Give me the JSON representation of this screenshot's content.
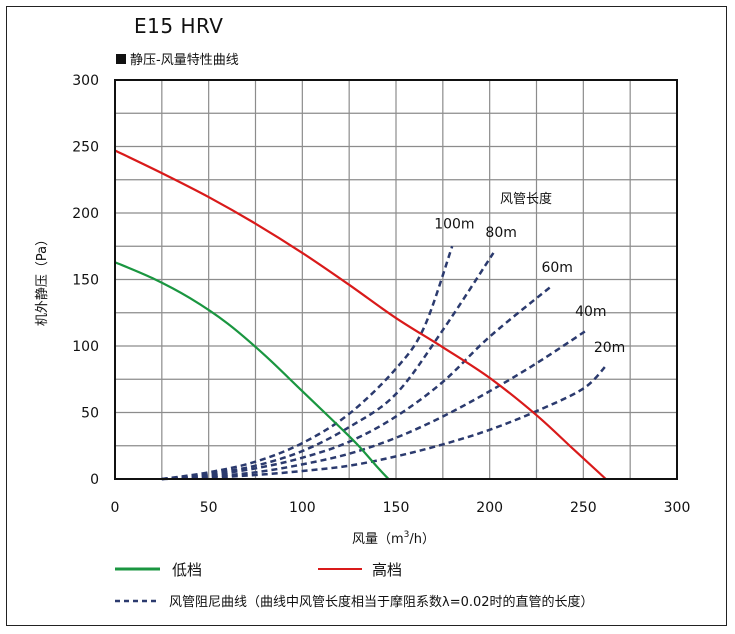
{
  "title": "E15 HRV",
  "subtitle": "静压-风量特性曲线",
  "chart_data": {
    "type": "line",
    "xlabel": "风量（m³/h）",
    "xlabel_parts": {
      "pre": "风量（m",
      "sup": "3",
      "post": "/h）"
    },
    "ylabel": "机外静压（Pa）",
    "xlim": [
      0,
      300
    ],
    "ylim": [
      0,
      300
    ],
    "x_ticks": [
      0,
      50,
      100,
      150,
      200,
      250,
      300
    ],
    "y_ticks": [
      0,
      50,
      100,
      150,
      200,
      250,
      300
    ],
    "grid": true,
    "series": [
      {
        "name": "低档",
        "color": "#1a9640",
        "style": "solid",
        "points": [
          [
            0,
            163
          ],
          [
            20,
            151
          ],
          [
            40,
            136
          ],
          [
            60,
            117
          ],
          [
            80,
            93
          ],
          [
            100,
            66
          ],
          [
            120,
            39
          ],
          [
            130,
            25
          ],
          [
            140,
            9
          ],
          [
            146,
            0
          ]
        ]
      },
      {
        "name": "高档",
        "color": "#d91a1a",
        "style": "solid",
        "points": [
          [
            0,
            247
          ],
          [
            25,
            230
          ],
          [
            50,
            212
          ],
          [
            75,
            192
          ],
          [
            100,
            170
          ],
          [
            125,
            146
          ],
          [
            150,
            121
          ],
          [
            175,
            99
          ],
          [
            200,
            76
          ],
          [
            225,
            48
          ],
          [
            245,
            22
          ],
          [
            262,
            0
          ]
        ]
      }
    ],
    "duct_curves": {
      "title": "风管长度",
      "color": "#2b3a6e",
      "style": "dashed",
      "curves": [
        {
          "label": "100m",
          "points": [
            [
              25,
              0
            ],
            [
              50,
              5
            ],
            [
              75,
              13
            ],
            [
              100,
              27
            ],
            [
              125,
              49
            ],
            [
              150,
              83
            ],
            [
              165,
              114
            ],
            [
              180,
              175
            ]
          ]
        },
        {
          "label": "80m",
          "points": [
            [
              25,
              0
            ],
            [
              50,
              4
            ],
            [
              75,
              10
            ],
            [
              100,
              21
            ],
            [
              125,
              39
            ],
            [
              150,
              64
            ],
            [
              175,
              112
            ],
            [
              202,
              170
            ]
          ]
        },
        {
          "label": "60m",
          "points": [
            [
              25,
              0
            ],
            [
              50,
              3
            ],
            [
              75,
              8
            ],
            [
              100,
              16
            ],
            [
              125,
              28
            ],
            [
              150,
              47
            ],
            [
              175,
              73
            ],
            [
              200,
              107
            ],
            [
              233,
              145
            ]
          ]
        },
        {
          "label": "40m",
          "points": [
            [
              25,
              0
            ],
            [
              50,
              2
            ],
            [
              75,
              5
            ],
            [
              100,
              11
            ],
            [
              125,
              19
            ],
            [
              150,
              31
            ],
            [
              175,
              47
            ],
            [
              200,
              66
            ],
            [
              225,
              87
            ],
            [
              252,
              112
            ]
          ]
        },
        {
          "label": "20m",
          "points": [
            [
              25,
              0
            ],
            [
              50,
              1
            ],
            [
              75,
              3
            ],
            [
              100,
              6
            ],
            [
              125,
              10
            ],
            [
              150,
              17
            ],
            [
              175,
              26
            ],
            [
              200,
              37
            ],
            [
              225,
              51
            ],
            [
              250,
              68
            ],
            [
              262,
              85
            ]
          ]
        }
      ]
    },
    "legend": {
      "placement": "bottom",
      "low_label": "低档",
      "high_label": "高档",
      "duct_label": "风管阻尼曲线（曲线中风管长度相当于摩阻系数λ=0.02时的直管的长度）"
    }
  }
}
